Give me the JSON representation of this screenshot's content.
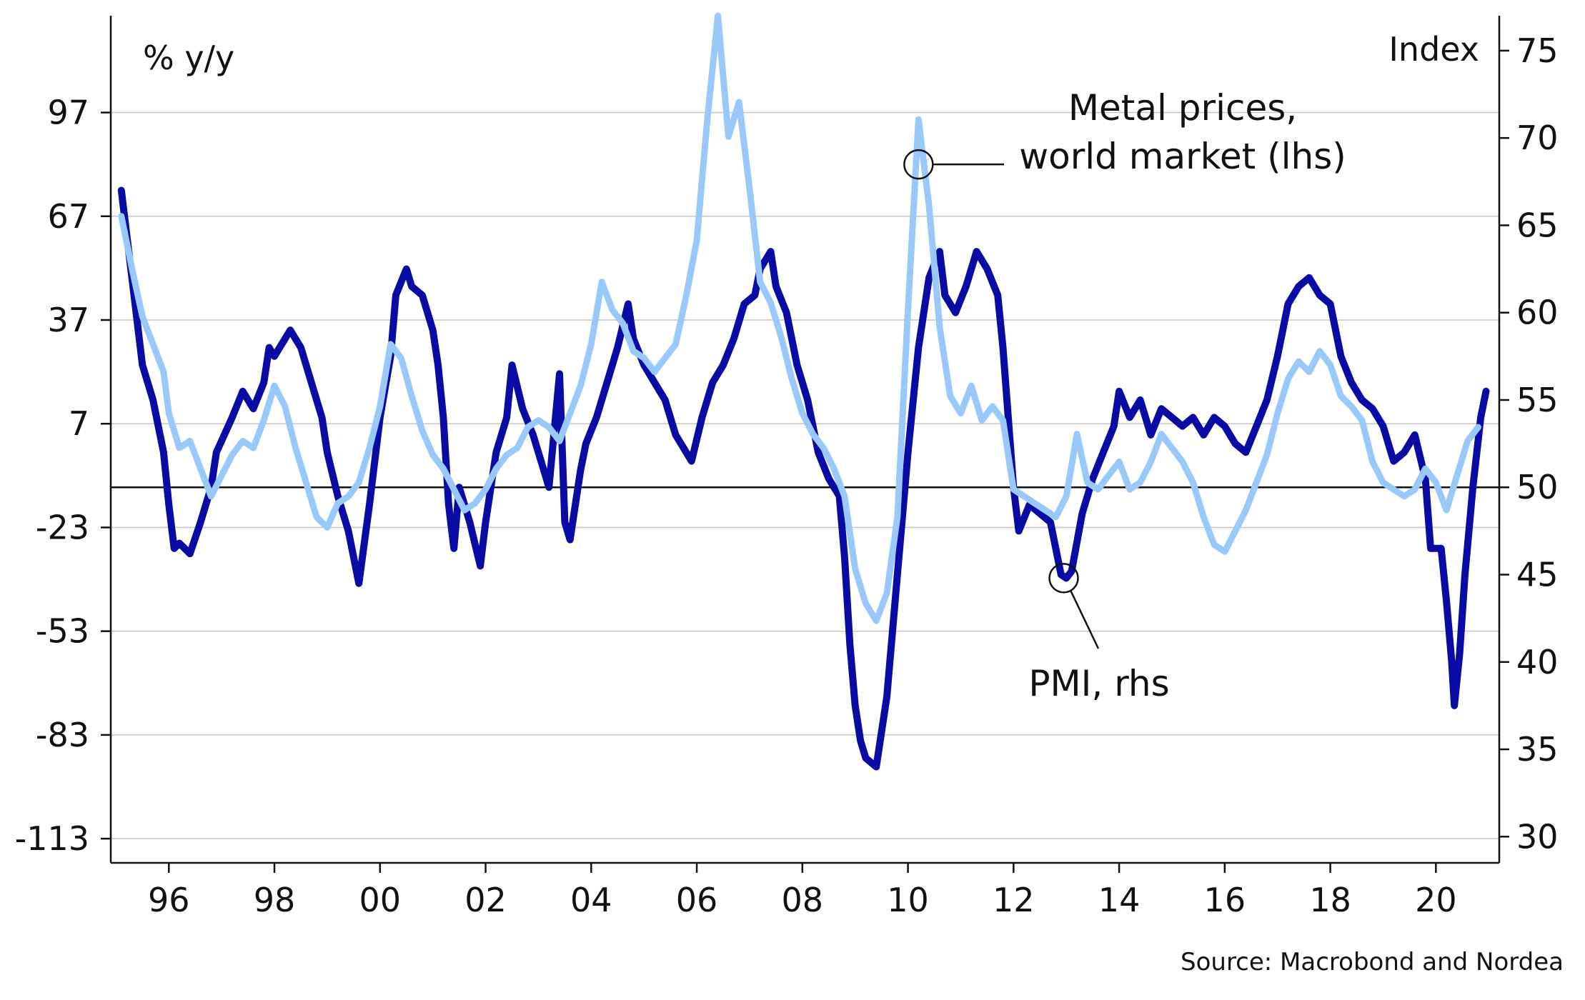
{
  "chart_data": {
    "type": "line",
    "left_axis": {
      "unit_label": "% y/y",
      "ticks": [
        97,
        67,
        37,
        7,
        -23,
        -53,
        -83,
        -113
      ],
      "range": [
        -120,
        125
      ]
    },
    "right_axis": {
      "unit_label": "Index",
      "ticks": [
        75,
        70,
        65,
        60,
        55,
        50,
        45,
        40,
        35,
        30
      ],
      "range": [
        28.5,
        77
      ]
    },
    "x_axis": {
      "tick_labels": [
        "96",
        "98",
        "00",
        "02",
        "04",
        "06",
        "08",
        "10",
        "12",
        "14",
        "16",
        "18",
        "20"
      ],
      "tick_years": [
        1996,
        1998,
        2000,
        2002,
        2004,
        2006,
        2008,
        2010,
        2012,
        2014,
        2016,
        2018,
        2020
      ],
      "range": [
        1994.9,
        2021.2
      ]
    },
    "reference_line": {
      "axis": "right",
      "value": 50
    },
    "series": [
      {
        "name": "Metal prices, world market (lhs)",
        "axis": "left",
        "color": "#99c9fb",
        "points": [
          [
            1995.1,
            67
          ],
          [
            1995.3,
            52
          ],
          [
            1995.5,
            38
          ],
          [
            1995.7,
            30
          ],
          [
            1995.9,
            22
          ],
          [
            1996.0,
            10
          ],
          [
            1996.2,
            0
          ],
          [
            1996.4,
            2
          ],
          [
            1996.6,
            -6
          ],
          [
            1996.8,
            -14
          ],
          [
            1997.0,
            -8
          ],
          [
            1997.2,
            -2
          ],
          [
            1997.4,
            2
          ],
          [
            1997.6,
            0
          ],
          [
            1997.8,
            8
          ],
          [
            1998.0,
            18
          ],
          [
            1998.2,
            12
          ],
          [
            1998.4,
            0
          ],
          [
            1998.6,
            -10
          ],
          [
            1998.8,
            -20
          ],
          [
            1999.0,
            -23
          ],
          [
            1999.2,
            -16
          ],
          [
            1999.4,
            -14
          ],
          [
            1999.6,
            -10
          ],
          [
            1999.8,
            0
          ],
          [
            2000.0,
            12
          ],
          [
            2000.2,
            30
          ],
          [
            2000.4,
            26
          ],
          [
            2000.6,
            15
          ],
          [
            2000.8,
            5
          ],
          [
            2001.0,
            -2
          ],
          [
            2001.2,
            -6
          ],
          [
            2001.4,
            -12
          ],
          [
            2001.6,
            -18
          ],
          [
            2001.8,
            -16
          ],
          [
            2002.0,
            -12
          ],
          [
            2002.2,
            -6
          ],
          [
            2002.4,
            -2
          ],
          [
            2002.6,
            0
          ],
          [
            2002.8,
            6
          ],
          [
            2003.0,
            8
          ],
          [
            2003.2,
            6
          ],
          [
            2003.4,
            2
          ],
          [
            2003.6,
            10
          ],
          [
            2003.8,
            18
          ],
          [
            2004.0,
            30
          ],
          [
            2004.2,
            48
          ],
          [
            2004.4,
            40
          ],
          [
            2004.6,
            36
          ],
          [
            2004.8,
            28
          ],
          [
            2005.0,
            26
          ],
          [
            2005.2,
            22
          ],
          [
            2005.4,
            26
          ],
          [
            2005.6,
            30
          ],
          [
            2005.8,
            44
          ],
          [
            2006.0,
            60
          ],
          [
            2006.2,
            95
          ],
          [
            2006.4,
            125
          ],
          [
            2006.6,
            90
          ],
          [
            2006.8,
            100
          ],
          [
            2007.0,
            75
          ],
          [
            2007.2,
            48
          ],
          [
            2007.4,
            42
          ],
          [
            2007.6,
            32
          ],
          [
            2007.8,
            20
          ],
          [
            2008.0,
            10
          ],
          [
            2008.2,
            4
          ],
          [
            2008.4,
            0
          ],
          [
            2008.6,
            -6
          ],
          [
            2008.8,
            -14
          ],
          [
            2009.0,
            -35
          ],
          [
            2009.2,
            -45
          ],
          [
            2009.4,
            -50
          ],
          [
            2009.6,
            -42
          ],
          [
            2009.8,
            -20
          ],
          [
            2010.0,
            40
          ],
          [
            2010.2,
            95
          ],
          [
            2010.4,
            70
          ],
          [
            2010.6,
            35
          ],
          [
            2010.8,
            15
          ],
          [
            2011.0,
            10
          ],
          [
            2011.2,
            18
          ],
          [
            2011.4,
            8
          ],
          [
            2011.6,
            12
          ],
          [
            2011.8,
            8
          ],
          [
            2012.0,
            -12
          ],
          [
            2012.2,
            -14
          ],
          [
            2012.4,
            -16
          ],
          [
            2012.6,
            -18
          ],
          [
            2012.8,
            -20
          ],
          [
            2013.0,
            -14
          ],
          [
            2013.2,
            4
          ],
          [
            2013.4,
            -10
          ],
          [
            2013.6,
            -12
          ],
          [
            2013.8,
            -8
          ],
          [
            2014.0,
            -4
          ],
          [
            2014.2,
            -12
          ],
          [
            2014.4,
            -10
          ],
          [
            2014.6,
            -4
          ],
          [
            2014.8,
            4
          ],
          [
            2015.0,
            0
          ],
          [
            2015.2,
            -4
          ],
          [
            2015.4,
            -10
          ],
          [
            2015.6,
            -20
          ],
          [
            2015.8,
            -28
          ],
          [
            2016.0,
            -30
          ],
          [
            2016.2,
            -24
          ],
          [
            2016.4,
            -18
          ],
          [
            2016.6,
            -10
          ],
          [
            2016.8,
            -2
          ],
          [
            2017.0,
            10
          ],
          [
            2017.2,
            20
          ],
          [
            2017.4,
            25
          ],
          [
            2017.6,
            22
          ],
          [
            2017.8,
            28
          ],
          [
            2018.0,
            24
          ],
          [
            2018.2,
            15
          ],
          [
            2018.4,
            12
          ],
          [
            2018.6,
            8
          ],
          [
            2018.8,
            -4
          ],
          [
            2019.0,
            -10
          ],
          [
            2019.2,
            -12
          ],
          [
            2019.4,
            -14
          ],
          [
            2019.6,
            -12
          ],
          [
            2019.8,
            -6
          ],
          [
            2020.0,
            -10
          ],
          [
            2020.2,
            -18
          ],
          [
            2020.4,
            -8
          ],
          [
            2020.6,
            2
          ],
          [
            2020.8,
            6
          ]
        ]
      },
      {
        "name": "PMI, rhs",
        "axis": "right",
        "color": "#0a0aa4",
        "points": [
          [
            1995.1,
            67.0
          ],
          [
            1995.3,
            62.0
          ],
          [
            1995.5,
            57.0
          ],
          [
            1995.7,
            55.0
          ],
          [
            1995.9,
            52.0
          ],
          [
            1996.0,
            49.0
          ],
          [
            1996.1,
            46.5
          ],
          [
            1996.2,
            46.8
          ],
          [
            1996.4,
            46.2
          ],
          [
            1996.6,
            48.0
          ],
          [
            1996.8,
            50.0
          ],
          [
            1996.9,
            52.0
          ],
          [
            1997.2,
            54.0
          ],
          [
            1997.4,
            55.5
          ],
          [
            1997.6,
            54.5
          ],
          [
            1997.8,
            56.0
          ],
          [
            1997.9,
            58.0
          ],
          [
            1998.0,
            57.5
          ],
          [
            1998.2,
            58.5
          ],
          [
            1998.3,
            59.0
          ],
          [
            1998.5,
            58.0
          ],
          [
            1998.7,
            56.0
          ],
          [
            1998.9,
            54.0
          ],
          [
            1999.0,
            52.0
          ],
          [
            1999.2,
            49.5
          ],
          [
            1999.4,
            47.5
          ],
          [
            1999.6,
            44.5
          ],
          [
            1999.8,
            49.0
          ],
          [
            2000.0,
            54.0
          ],
          [
            2000.2,
            57.5
          ],
          [
            2000.3,
            61.0
          ],
          [
            2000.5,
            62.5
          ],
          [
            2000.6,
            61.5
          ],
          [
            2000.8,
            61.0
          ],
          [
            2001.0,
            59.0
          ],
          [
            2001.1,
            57.0
          ],
          [
            2001.2,
            54.0
          ],
          [
            2001.3,
            49.0
          ],
          [
            2001.4,
            46.5
          ],
          [
            2001.5,
            50.0
          ],
          [
            2001.7,
            48.0
          ],
          [
            2001.9,
            45.5
          ],
          [
            2002.0,
            48.0
          ],
          [
            2002.2,
            52.0
          ],
          [
            2002.4,
            54.0
          ],
          [
            2002.5,
            57.0
          ],
          [
            2002.7,
            54.5
          ],
          [
            2002.9,
            53.0
          ],
          [
            2003.0,
            52.0
          ],
          [
            2003.2,
            50.0
          ],
          [
            2003.4,
            56.5
          ],
          [
            2003.5,
            48.0
          ],
          [
            2003.6,
            47.0
          ],
          [
            2003.8,
            51.0
          ],
          [
            2003.9,
            52.5
          ],
          [
            2004.1,
            54.0
          ],
          [
            2004.3,
            56.0
          ],
          [
            2004.5,
            58.0
          ],
          [
            2004.7,
            60.5
          ],
          [
            2004.8,
            58.5
          ],
          [
            2005.0,
            57.0
          ],
          [
            2005.2,
            56.0
          ],
          [
            2005.4,
            55.0
          ],
          [
            2005.6,
            53.0
          ],
          [
            2005.8,
            52.0
          ],
          [
            2005.9,
            51.5
          ],
          [
            2006.1,
            54.0
          ],
          [
            2006.3,
            56.0
          ],
          [
            2006.5,
            57.0
          ],
          [
            2006.7,
            58.5
          ],
          [
            2006.9,
            60.5
          ],
          [
            2007.1,
            61.0
          ],
          [
            2007.2,
            62.5
          ],
          [
            2007.4,
            63.5
          ],
          [
            2007.5,
            61.5
          ],
          [
            2007.7,
            60.0
          ],
          [
            2007.9,
            57.0
          ],
          [
            2008.1,
            55.0
          ],
          [
            2008.3,
            52.0
          ],
          [
            2008.5,
            50.5
          ],
          [
            2008.7,
            49.5
          ],
          [
            2008.8,
            46.0
          ],
          [
            2008.9,
            41.0
          ],
          [
            2009.0,
            37.5
          ],
          [
            2009.1,
            35.5
          ],
          [
            2009.2,
            34.5
          ],
          [
            2009.4,
            34.0
          ],
          [
            2009.6,
            38.0
          ],
          [
            2009.8,
            45.0
          ],
          [
            2010.0,
            52.0
          ],
          [
            2010.2,
            58.0
          ],
          [
            2010.4,
            62.0
          ],
          [
            2010.6,
            63.5
          ],
          [
            2010.7,
            61.0
          ],
          [
            2010.9,
            60.0
          ],
          [
            2011.1,
            61.5
          ],
          [
            2011.3,
            63.5
          ],
          [
            2011.5,
            62.5
          ],
          [
            2011.7,
            61.0
          ],
          [
            2011.8,
            58.0
          ],
          [
            2011.9,
            54.0
          ],
          [
            2012.0,
            50.0
          ],
          [
            2012.1,
            47.5
          ],
          [
            2012.3,
            49.0
          ],
          [
            2012.5,
            48.5
          ],
          [
            2012.7,
            48.0
          ],
          [
            2012.8,
            46.5
          ],
          [
            2012.9,
            45.0
          ],
          [
            2013.0,
            44.8
          ],
          [
            2013.1,
            45.2
          ],
          [
            2013.3,
            48.5
          ],
          [
            2013.5,
            50.5
          ],
          [
            2013.7,
            52.0
          ],
          [
            2013.9,
            53.5
          ],
          [
            2014.0,
            55.5
          ],
          [
            2014.2,
            54.0
          ],
          [
            2014.4,
            55.0
          ],
          [
            2014.6,
            53.0
          ],
          [
            2014.8,
            54.5
          ],
          [
            2015.0,
            54.0
          ],
          [
            2015.2,
            53.5
          ],
          [
            2015.4,
            54.0
          ],
          [
            2015.6,
            53.0
          ],
          [
            2015.8,
            54.0
          ],
          [
            2016.0,
            53.5
          ],
          [
            2016.2,
            52.5
          ],
          [
            2016.4,
            52.0
          ],
          [
            2016.6,
            53.5
          ],
          [
            2016.8,
            55.0
          ],
          [
            2017.0,
            57.5
          ],
          [
            2017.2,
            60.5
          ],
          [
            2017.4,
            61.5
          ],
          [
            2017.6,
            62.0
          ],
          [
            2017.8,
            61.0
          ],
          [
            2018.0,
            60.5
          ],
          [
            2018.2,
            57.5
          ],
          [
            2018.4,
            56.0
          ],
          [
            2018.6,
            55.0
          ],
          [
            2018.8,
            54.5
          ],
          [
            2019.0,
            53.5
          ],
          [
            2019.2,
            51.5
          ],
          [
            2019.4,
            52.0
          ],
          [
            2019.6,
            53.0
          ],
          [
            2019.8,
            50.5
          ],
          [
            2019.9,
            46.5
          ],
          [
            2020.1,
            46.5
          ],
          [
            2020.2,
            43.5
          ],
          [
            2020.3,
            40.0
          ],
          [
            2020.35,
            37.5
          ],
          [
            2020.45,
            40.5
          ],
          [
            2020.55,
            45.0
          ],
          [
            2020.7,
            50.0
          ],
          [
            2020.85,
            54.0
          ],
          [
            2020.95,
            55.5
          ]
        ]
      }
    ],
    "annotations": [
      {
        "text_lines": [
          "Metal prices,",
          "world market (lhs)"
        ],
        "target_series": 0,
        "target_x": 2010.2,
        "target_y": 82
      },
      {
        "text_lines": [
          "PMI, rhs"
        ],
        "target_series": 1,
        "target_x": 2012.95,
        "target_y": 44.8
      }
    ],
    "source": "Source: Macrobond and Nordea"
  }
}
